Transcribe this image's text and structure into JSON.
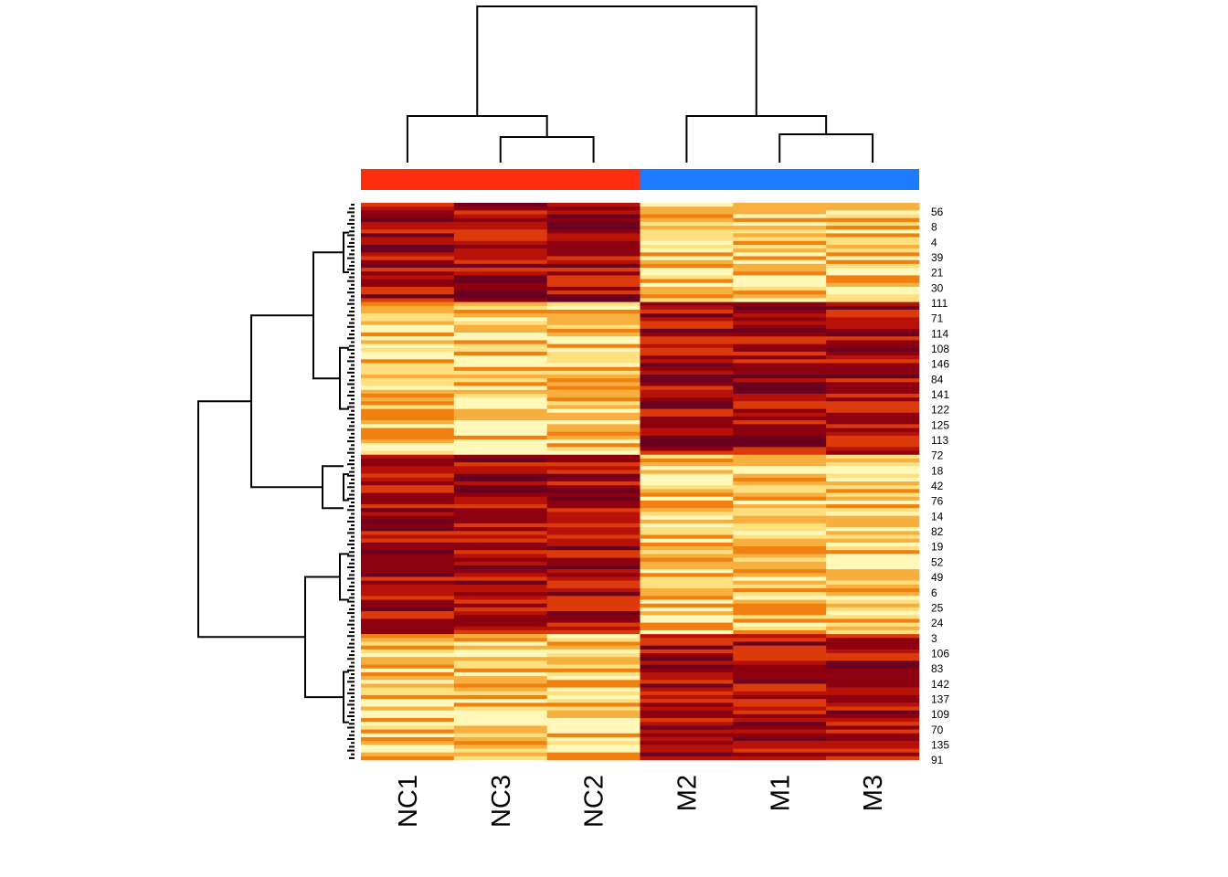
{
  "chart_data": {
    "type": "heatmap",
    "columns": [
      "NC1",
      "NC3",
      "NC2",
      "M2",
      "M1",
      "M3"
    ],
    "column_groups": [
      {
        "columns": [
          "NC1",
          "NC3",
          "NC2"
        ],
        "color": "#ff2d10"
      },
      {
        "columns": [
          "M2",
          "M1",
          "M3"
        ],
        "color": "#1e7bff"
      }
    ],
    "row_labels_shown": [
      "56",
      "8",
      "4",
      "39",
      "21",
      "30",
      "111",
      "71",
      "114",
      "108",
      "146",
      "84",
      "141",
      "122",
      "125",
      "113",
      "72",
      "18",
      "42",
      "76",
      "14",
      "82",
      "19",
      "52",
      "49",
      "6",
      "25",
      "24",
      "3",
      "106",
      "83",
      "142",
      "137",
      "109",
      "70",
      "135",
      "91"
    ],
    "row_count": 146,
    "row_clusters": [
      {
        "pattern": "high-in-NC",
        "rows": 26
      },
      {
        "pattern": "high-in-M",
        "rows": 40
      },
      {
        "pattern": "high-in-NC",
        "rows": 17
      },
      {
        "pattern": "high-in-NC",
        "rows": 30
      },
      {
        "pattern": "high-in-M",
        "rows": 33
      }
    ],
    "column_dendrogram": "((NC1,(NC3,NC2)),(M2,(M1,M3)))",
    "color_scale": [
      "#fff8b8",
      "#ffe080",
      "#f7b040",
      "#f08010",
      "#dc3a0a",
      "#b81208",
      "#8c0010",
      "#6a0020"
    ],
    "color_scale_meaning": "light = low, dark red = high",
    "legend": "none"
  }
}
